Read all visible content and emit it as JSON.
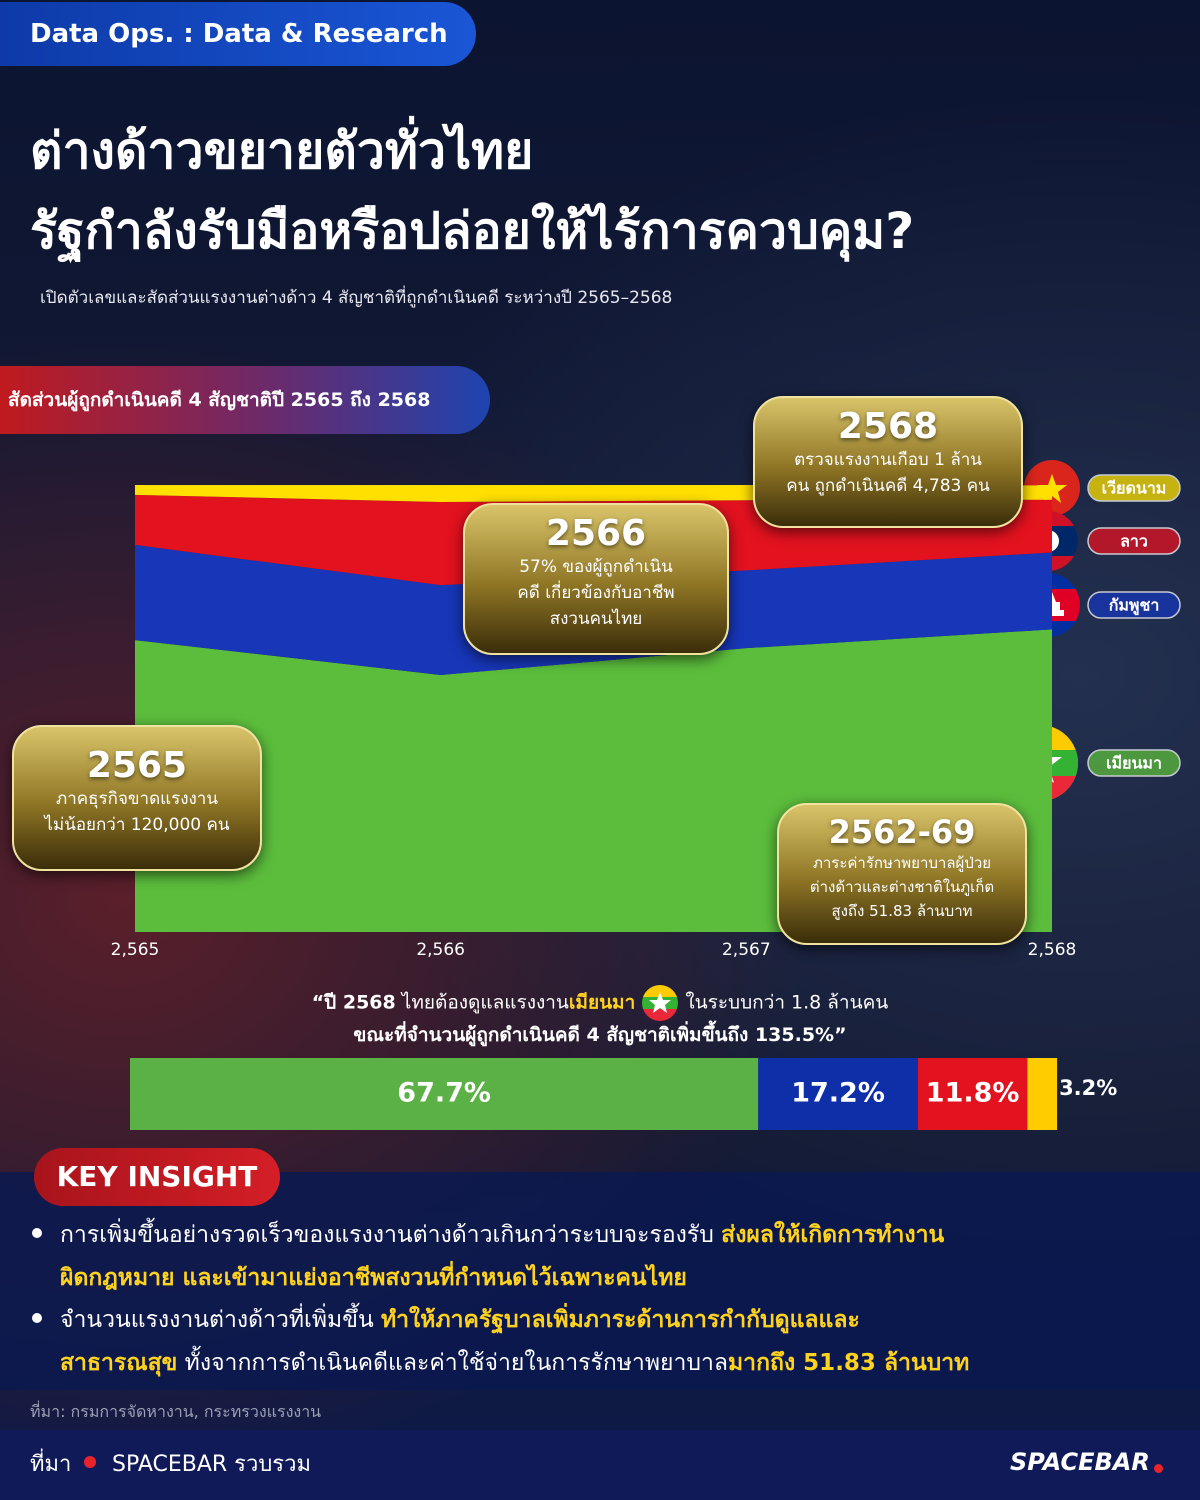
{
  "header": {
    "tag": "Data Ops.  : Data & Research",
    "title": [
      "ต่างด้าวขยายตัวทั่วไทย",
      "รัฐกำลังรับมือหรือปล่อยให้ไร้การควบคุม?"
    ],
    "subtitle": "เปิดตัวเลขและสัดส่วนแรงงานต่างด้าว 4 สัญชาติที่ถูกดำเนินคดี ระหว่างปี 2565–2568"
  },
  "chart_data": [
    {
      "type": "area",
      "stacked": true,
      "title": "สัดส่วนผู้ถูกดำเนินคดี 4 สัญชาติปี 2565 ถึง 2568",
      "categories": [
        "2,565",
        "2,566",
        "2,567",
        "2,568"
      ],
      "ylim": [
        0,
        100
      ],
      "series": [
        {
          "name": "เมียนมา",
          "color": "#5cbd3c",
          "values": [
            65.3,
            57.5,
            63.5,
            67.7
          ]
        },
        {
          "name": "กัมพูชา",
          "color": "#1736b8",
          "values": [
            21.3,
            20.1,
            17.4,
            17.2
          ]
        },
        {
          "name": "ลาว",
          "color": "#e3121f",
          "values": [
            11.2,
            18.6,
            15.7,
            11.8
          ]
        },
        {
          "name": "เวียดนาม",
          "color": "#ffe000",
          "values": [
            2.2,
            3.8,
            3.4,
            3.2
          ]
        }
      ]
    },
    {
      "type": "bar",
      "orientation": "horizontal",
      "stacked": true,
      "xlim": [
        0,
        100
      ],
      "series": [
        {
          "color": "#5cb146",
          "values": [
            67.7
          ],
          "value_labels": [
            "67.7%"
          ]
        },
        {
          "color": "#0f2fa8",
          "values": [
            17.2
          ],
          "value_labels": [
            "17.2%"
          ]
        },
        {
          "color": "#e3121f",
          "values": [
            11.8
          ],
          "value_labels": [
            "11.8%"
          ]
        },
        {
          "color": "#ffcc00",
          "values": [
            3.2
          ],
          "value_labels": [
            "3.2%"
          ]
        }
      ]
    }
  ],
  "callouts": [
    {
      "year": "2568",
      "lines": [
        "ตรวจแรงงานเกือบ 1 ล้าน",
        "คน ถูกดำเนินคดี 4,783 คน"
      ]
    },
    {
      "year": "2566",
      "lines": [
        "57% ของผู้ถูกดำเนิน",
        "คดี เกี่ยวข้องกับอาชีพ",
        "สงวนคนไทย"
      ]
    },
    {
      "year": "2565",
      "lines": [
        "ภาคธุรกิจขาดแรงงาน",
        "ไม่น้อยกว่า 120,000 คน"
      ]
    },
    {
      "year": "2562-69",
      "lines": [
        "ภาระค่ารักษาพยาบาลผู้ป่วย",
        "ต่างด้าวและต่างชาติในภูเก็ต",
        "สูงถึง 51.83 ล้านบาท"
      ]
    }
  ],
  "quote": {
    "lines": [
      [
        "“ปี 2568",
        "ไทยต้องดูแลแรงงาน",
        "เมียนมา",
        "ในระบบกว่า 1.8 ล้านคน"
      ],
      [
        "ขณะที่จำนวนผู้ถูกดำเนินคดี 4 สัญชาติเพิ่มขึ้นถึง 135.5%”"
      ]
    ]
  },
  "key_insight": {
    "title": "KEY INSIGHT",
    "bullets": [
      [
        [
          "การเพิ่มขึ้นอย่างรวดเร็วของแรงงานต่างด้าวเกินกว่าระบบจะรองรับ",
          "ส่งผลให้เกิดการทำงาน"
        ],
        [
          "ผิดกฎหมาย และเข้ามาแย่งอาชีพสงวนที่กำหนดไว้เฉพาะคนไทย"
        ]
      ],
      [
        [
          "จำนวนแรงงานต่างด้าวที่เพิ่มขึ้น",
          "ทำให้ภาครัฐบาลเพิ่มภาระด้านการกำกับดูแลและ"
        ],
        [
          "สาธารณสุข",
          "ทั้งจากการดำเนินคดีและค่าใช้จ่ายในการรักษาพยาบาล",
          "มากถึง 51.83 ล้านบาท"
        ]
      ]
    ]
  },
  "source": "ที่มา: กรมการจัดหางาน, กระทรวงแรงงาน",
  "footer": {
    "label": "ที่มา",
    "credit": "SPACEBAR รวบรวม",
    "logo": "SPACEBAR"
  }
}
